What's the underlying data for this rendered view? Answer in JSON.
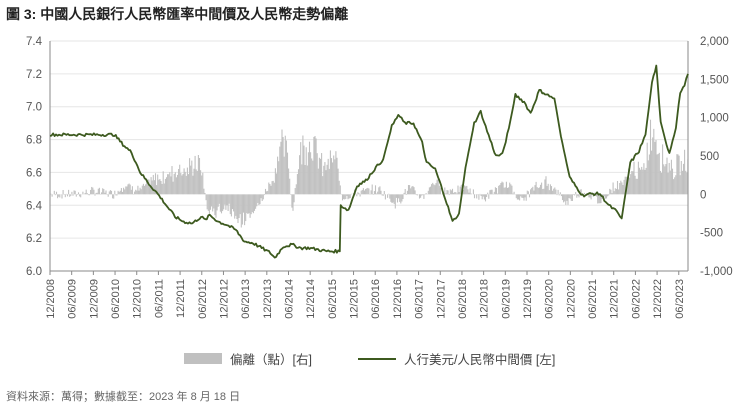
{
  "figure_title": "圖 3: 中國人民銀行人民幣匯率中間價及人民幣走勢偏離",
  "source": "資料來源：萬得；數據截至：2023 年 8 月 18 日",
  "colors": {
    "line": "#3d5a1f",
    "bars": "#c0c0c0",
    "axis": "#8a8a8a",
    "grid": "#e6e6e6"
  },
  "chart_data": {
    "type": "line",
    "title": "",
    "left_axis": {
      "min": 6.0,
      "max": 7.4,
      "ticks": [
        "6.0",
        "6.2",
        "6.4",
        "6.6",
        "6.8",
        "7.0",
        "7.2",
        "7.4"
      ]
    },
    "right_axis": {
      "min": -1000,
      "max": 2000,
      "ticks": [
        "-1,000",
        "-500",
        "0",
        "500",
        "1,000",
        "1,500",
        "2,000"
      ]
    },
    "x_range": [
      2008.917,
      2023.63
    ],
    "x_ticks": [
      "12/2008",
      "06/2009",
      "12/2009",
      "06/2010",
      "12/2010",
      "06/2011",
      "12/2011",
      "06/2012",
      "12/2012",
      "06/2013",
      "12/2013",
      "06/2014",
      "12/2014",
      "06/2015",
      "12/2015",
      "06/2016",
      "12/2016",
      "06/2017",
      "12/2017",
      "06/2018",
      "12/2018",
      "06/2019",
      "12/2019",
      "06/2020",
      "12/2020",
      "06/2021",
      "12/2021",
      "06/2022",
      "12/2022",
      "06/2023"
    ],
    "legend": [
      "偏離（點）[右]",
      "人行美元/人民幣中間價 [左]"
    ],
    "series": [
      {
        "name": "人行美元/人民幣中間價 [左]",
        "axis": "left",
        "x": [
          2008.92,
          2009.5,
          2010.0,
          2010.4,
          2010.5,
          2010.6,
          2010.8,
          2011.0,
          2011.2,
          2011.4,
          2011.6,
          2011.8,
          2012.0,
          2012.2,
          2012.4,
          2012.5,
          2012.6,
          2012.8,
          2013.0,
          2013.2,
          2013.4,
          2013.6,
          2013.8,
          2014.0,
          2014.1,
          2014.3,
          2014.5,
          2014.7,
          2014.9,
          2015.1,
          2015.3,
          2015.5,
          2015.6,
          2015.62,
          2015.8,
          2016.0,
          2016.2,
          2016.4,
          2016.6,
          2016.8,
          2016.95,
          2017.1,
          2017.3,
          2017.5,
          2017.6,
          2017.8,
          2018.0,
          2018.2,
          2018.35,
          2018.5,
          2018.7,
          2018.85,
          2019.0,
          2019.2,
          2019.35,
          2019.5,
          2019.65,
          2019.85,
          2020.0,
          2020.2,
          2020.4,
          2020.55,
          2020.7,
          2020.9,
          2021.0,
          2021.2,
          2021.4,
          2021.6,
          2021.8,
          2021.95,
          2022.1,
          2022.3,
          2022.5,
          2022.65,
          2022.8,
          2022.9,
          2023.0,
          2023.1,
          2023.2,
          2023.35,
          2023.45,
          2023.55,
          2023.63
        ],
        "y": [
          6.83,
          6.83,
          6.83,
          6.83,
          6.8,
          6.77,
          6.72,
          6.6,
          6.53,
          6.47,
          6.4,
          6.33,
          6.3,
          6.29,
          6.33,
          6.31,
          6.34,
          6.3,
          6.28,
          6.25,
          6.18,
          6.17,
          6.14,
          6.11,
          6.08,
          6.15,
          6.16,
          6.14,
          6.14,
          6.13,
          6.12,
          6.12,
          6.12,
          6.4,
          6.37,
          6.52,
          6.55,
          6.62,
          6.68,
          6.88,
          6.95,
          6.9,
          6.9,
          6.78,
          6.66,
          6.62,
          6.47,
          6.3,
          6.35,
          6.63,
          6.9,
          6.97,
          6.85,
          6.7,
          6.71,
          6.87,
          7.07,
          7.03,
          6.96,
          7.1,
          7.07,
          7.05,
          6.82,
          6.57,
          6.53,
          6.46,
          6.47,
          6.47,
          6.4,
          6.37,
          6.32,
          6.66,
          6.73,
          6.83,
          7.15,
          7.25,
          6.9,
          6.8,
          6.72,
          6.87,
          7.09,
          7.13,
          7.2
        ]
      },
      {
        "name": "偏離（點）[右]",
        "axis": "right",
        "x": [
          2008.92,
          2009.5,
          2010.0,
          2010.4,
          2010.6,
          2011.0,
          2011.3,
          2011.6,
          2011.9,
          2012.1,
          2012.25,
          2012.4,
          2012.55,
          2012.7,
          2013.0,
          2013.3,
          2013.6,
          2013.9,
          2014.1,
          2014.2,
          2014.4,
          2014.5,
          2014.7,
          2014.9,
          2015.0,
          2015.2,
          2015.5,
          2015.6,
          2015.65,
          2016.0,
          2016.5,
          2016.9,
          2017.2,
          2017.5,
          2017.8,
          2018.0,
          2018.5,
          2018.9,
          2019.2,
          2019.5,
          2019.8,
          2020.0,
          2020.4,
          2020.8,
          2021.2,
          2021.6,
          2021.9,
          2022.1,
          2022.4,
          2022.6,
          2022.75,
          2022.85,
          2023.0,
          2023.3,
          2023.63
        ],
        "y": [
          0,
          0,
          50,
          0,
          150,
          60,
          220,
          280,
          400,
          350,
          500,
          420,
          -250,
          -280,
          -180,
          -420,
          -350,
          50,
          300,
          750,
          650,
          -320,
          700,
          800,
          750,
          400,
          550,
          200,
          -50,
          20,
          80,
          -150,
          100,
          -50,
          200,
          50,
          100,
          -80,
          80,
          150,
          -100,
          50,
          200,
          -120,
          60,
          -100,
          100,
          150,
          400,
          300,
          900,
          1000,
          600,
          400,
          500
        ]
      }
    ]
  }
}
